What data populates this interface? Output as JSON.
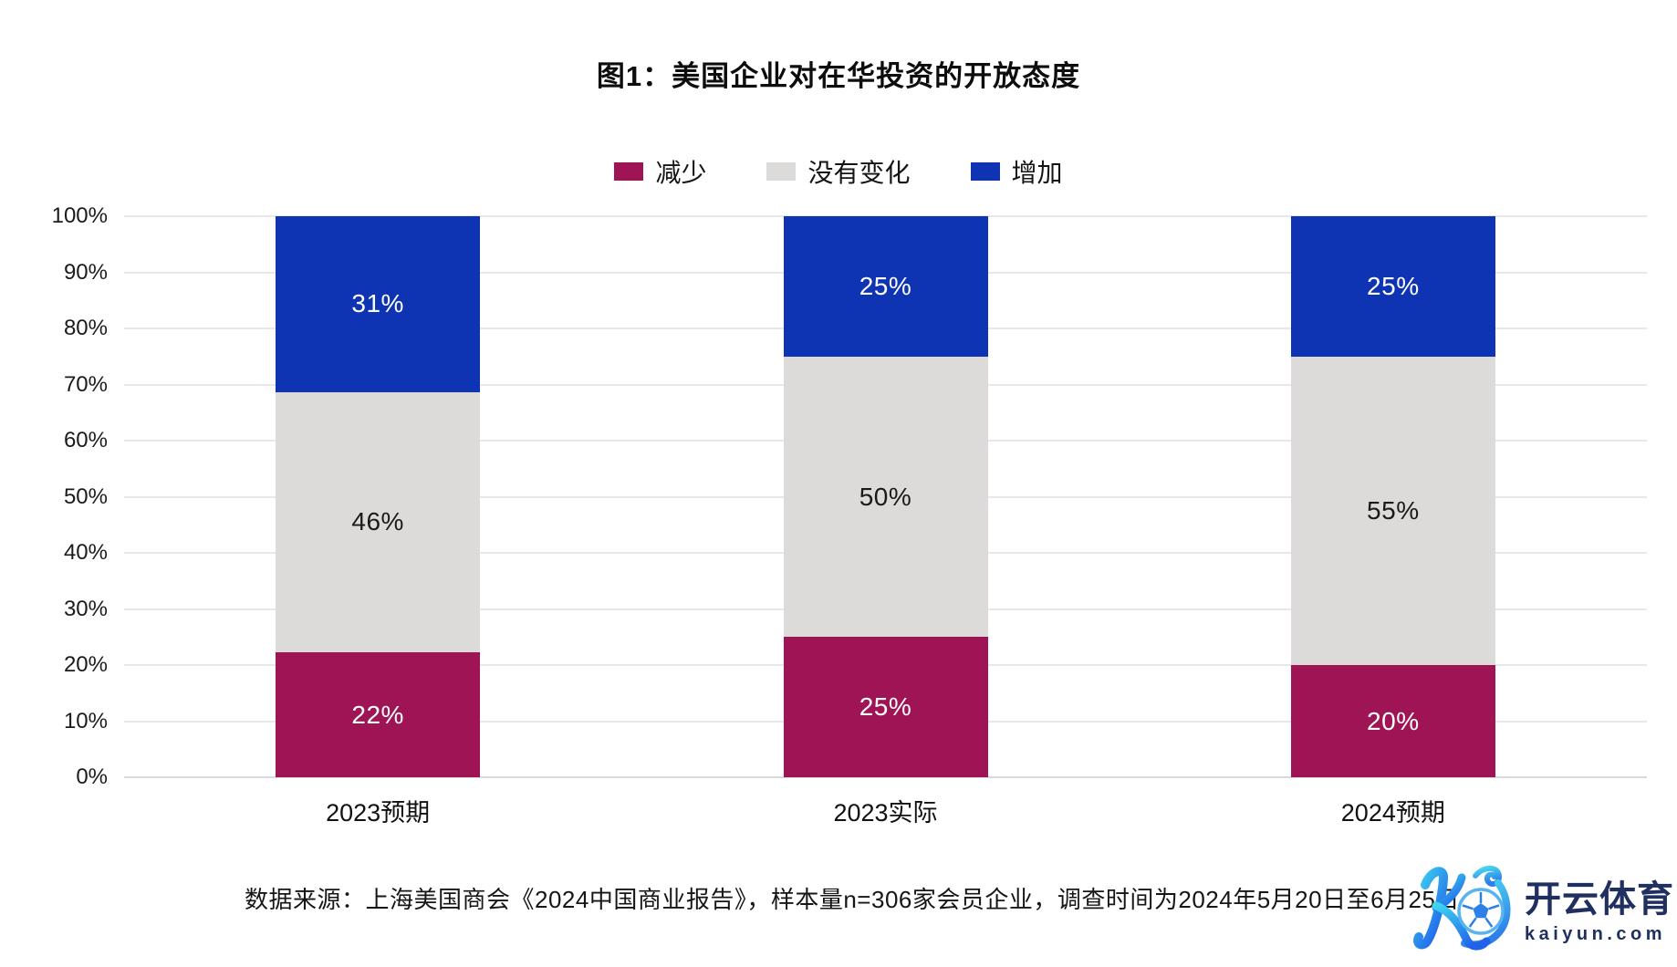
{
  "header": {
    "title": "图1：美国企业对在华投资的开放态度"
  },
  "legend": {
    "items": [
      {
        "label": "减少",
        "color": "#9F1454"
      },
      {
        "label": "没有变化",
        "color": "#DDDBDA"
      },
      {
        "label": "增加",
        "color": "#0E34B4"
      }
    ]
  },
  "chart_data": {
    "type": "bar",
    "stacked": true,
    "normalized_100_percent": true,
    "title": "图1：美国企业对在华投资的开放态度",
    "categories": [
      "2023预期",
      "2023实际",
      "2024预期"
    ],
    "series": [
      {
        "name": "减少",
        "color": "#9F1454",
        "label_color": "#FFFFFF",
        "values": [
          22,
          25,
          20
        ],
        "labels": [
          "22%",
          "25%",
          "20%"
        ]
      },
      {
        "name": "没有变化",
        "color": "#DDDBDA",
        "label_color": "#1A1A1A",
        "values": [
          46,
          50,
          55
        ],
        "labels": [
          "46%",
          "50%",
          "55%"
        ]
      },
      {
        "name": "增加",
        "color": "#0E34B4",
        "label_color": "#FFFFFF",
        "values": [
          31,
          25,
          25
        ],
        "labels": [
          "31%",
          "25%",
          "25%"
        ]
      }
    ],
    "xlabel": "",
    "ylabel": "",
    "ylim": [
      0,
      100
    ],
    "yticks": [
      "0%",
      "10%",
      "20%",
      "30%",
      "40%",
      "50%",
      "60%",
      "70%",
      "80%",
      "90%",
      "100%"
    ],
    "grid": true,
    "legend_position": "top"
  },
  "footer": {
    "source": "数据来源：上海美国商会《2024中国商业报告》，样本量n=306家会员企业，调查时间为2024年5月20日至6月25日。"
  },
  "watermark": {
    "brand": "开云体育",
    "domain": "kaiyun.com",
    "logo": "kaiyun-k-soccer-ball-logo",
    "text_color": "#1F3060",
    "logo_gradient": [
      "#3ED5EF",
      "#2062EA"
    ]
  }
}
